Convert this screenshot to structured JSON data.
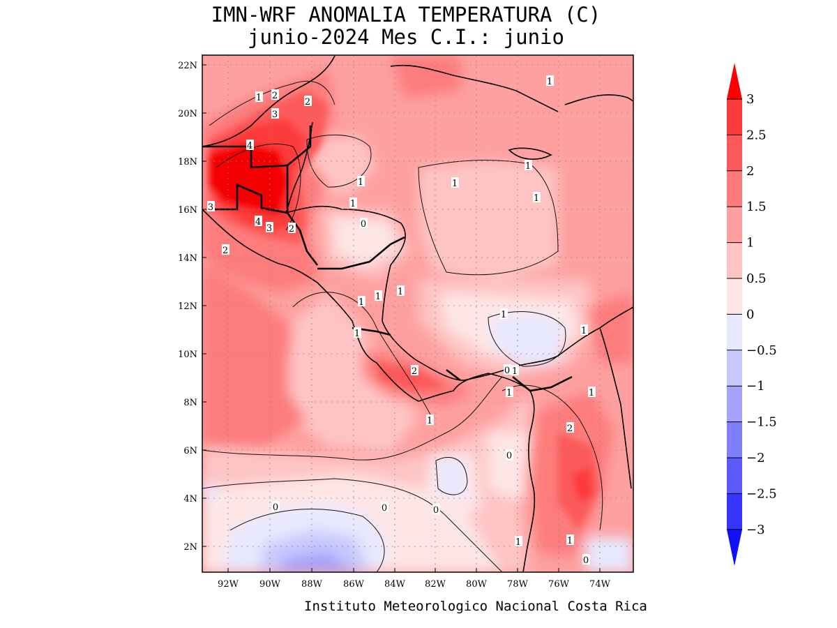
{
  "title_line1": "IMN-WRF  ANOMALIA TEMPERATURA (C)",
  "title_line2": "junio-2024 Mes C.I.: junio",
  "credit": "Instituto Meteorologico Nacional Costa Rica",
  "lat_labels": [
    "22N",
    "20N",
    "18N",
    "16N",
    "14N",
    "12N",
    "10N",
    "8N",
    "6N",
    "4N",
    "2N"
  ],
  "lon_labels": [
    "92W",
    "90W",
    "88W",
    "86W",
    "84W",
    "82W",
    "80W",
    "78W",
    "76W",
    "74W"
  ],
  "colorbar": {
    "labels": [
      "3",
      "2.5",
      "2",
      "1.5",
      "1",
      "0.5",
      "0",
      "−0.5",
      "−1",
      "−1.5",
      "−2",
      "−2.5",
      "−3"
    ],
    "colors": [
      "#f50000",
      "#fc3a3a",
      "#fc5a5a",
      "#fd7b7b",
      "#fea0a0",
      "#fec4c4",
      "#fee6e6",
      "#e8e8fe",
      "#c8c8fd",
      "#a4a4fb",
      "#7f7ffb",
      "#5b5bfc",
      "#3636fb",
      "#1414fc"
    ],
    "top_arrow_color": "#ff0000",
    "bottom_arrow_color": "#1010ff"
  },
  "contour_labels": [
    {
      "t": "1",
      "name": "contour-label"
    },
    {
      "t": "2",
      "name": "contour-label"
    },
    {
      "t": "2",
      "name": "contour-label"
    },
    {
      "t": "3",
      "name": "contour-label"
    },
    {
      "t": "4",
      "name": "contour-label"
    },
    {
      "t": "3",
      "name": "contour-label"
    },
    {
      "t": "4",
      "name": "contour-label"
    },
    {
      "t": "3",
      "name": "contour-label"
    },
    {
      "t": "2",
      "name": "contour-label"
    },
    {
      "t": "2",
      "name": "contour-label"
    },
    {
      "t": "1",
      "name": "contour-label"
    },
    {
      "t": "1",
      "name": "contour-label"
    },
    {
      "t": "0",
      "name": "contour-label"
    },
    {
      "t": "1",
      "name": "contour-label"
    },
    {
      "t": "1",
      "name": "contour-label"
    },
    {
      "t": "1",
      "name": "contour-label"
    },
    {
      "t": "1",
      "name": "contour-label"
    },
    {
      "t": "2",
      "name": "contour-label"
    },
    {
      "t": "1",
      "name": "contour-label"
    },
    {
      "t": "1",
      "name": "contour-label"
    },
    {
      "t": "1",
      "name": "contour-label"
    },
    {
      "t": "1",
      "name": "contour-label"
    },
    {
      "t": "1",
      "name": "contour-label"
    },
    {
      "t": "1",
      "name": "contour-label"
    },
    {
      "t": "0",
      "name": "contour-label"
    },
    {
      "t": "1",
      "name": "contour-label"
    },
    {
      "t": "1",
      "name": "contour-label"
    },
    {
      "t": "1",
      "name": "contour-label"
    },
    {
      "t": "2",
      "name": "contour-label"
    },
    {
      "t": "0",
      "name": "contour-label"
    },
    {
      "t": "0",
      "name": "contour-label"
    },
    {
      "t": "0",
      "name": "contour-label"
    },
    {
      "t": "0",
      "name": "contour-label"
    },
    {
      "t": "1",
      "name": "contour-label"
    },
    {
      "t": "1",
      "name": "contour-label"
    },
    {
      "t": "0",
      "name": "contour-label"
    },
    {
      "t": "1",
      "name": "contour-label"
    }
  ]
}
